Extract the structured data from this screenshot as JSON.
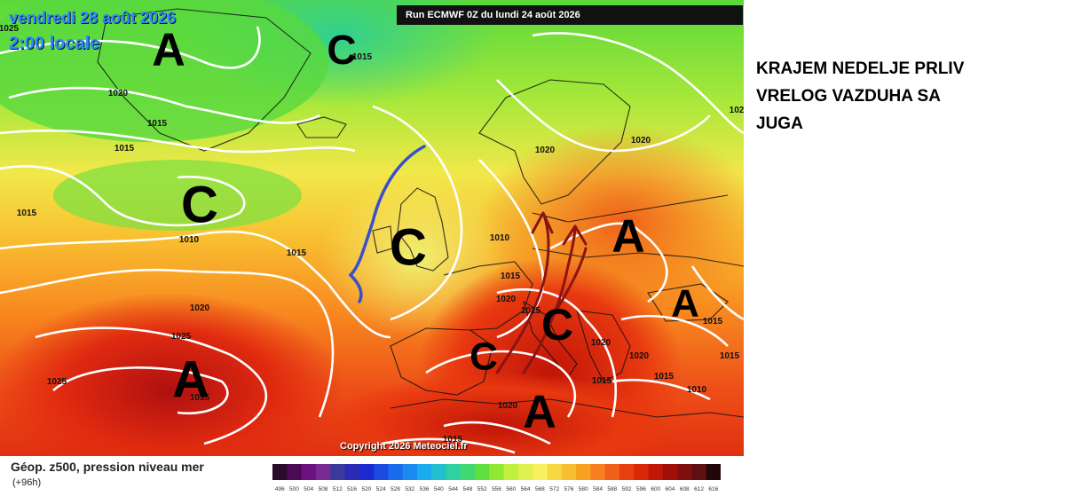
{
  "map": {
    "run_banner": "Run ECMWF 0Z du lundi 24 août 2026",
    "valid_date": "vendredi 28 août 2026",
    "valid_time": "2:00 locale",
    "copyright": "Copyright 2026 Meteociel.fr",
    "pressure_centers": [
      {
        "symbol": "A",
        "kind": "high"
      },
      {
        "symbol": "C",
        "kind": "low"
      },
      {
        "symbol": "C",
        "kind": "low"
      },
      {
        "symbol": "C",
        "kind": "low"
      },
      {
        "symbol": "A",
        "kind": "high"
      },
      {
        "symbol": "A",
        "kind": "high"
      },
      {
        "symbol": "C",
        "kind": "low"
      },
      {
        "symbol": "A",
        "kind": "high"
      },
      {
        "symbol": "C",
        "kind": "low"
      },
      {
        "symbol": "A",
        "kind": "high"
      }
    ],
    "isobar_labels": [
      "1015",
      "1020",
      "1015",
      "1015",
      "1015",
      "1010",
      "1015",
      "1020",
      "1025",
      "1025",
      "1035",
      "1020",
      "1010",
      "1015",
      "1020",
      "1025",
      "1020",
      "1020",
      "1015",
      "1015",
      "1015",
      "1010",
      "1020",
      "1015",
      "1015",
      "1025",
      "1020",
      "102"
    ],
    "annotation_colors": {
      "trough_line": "#3a4fd0",
      "warm_arrows": "#8a1414"
    }
  },
  "headline": {
    "lines": [
      "KRAJEM NEDELJE PRLIV",
      "VRELOG VAZDUHA SA",
      "JUGA"
    ]
  },
  "legend": {
    "title": "Géop. z500, pression niveau mer",
    "subtitle": "(+96h)",
    "values": [
      "496",
      "500",
      "504",
      "508",
      "512",
      "516",
      "520",
      "524",
      "528",
      "532",
      "536",
      "540",
      "544",
      "548",
      "552",
      "556",
      "560",
      "564",
      "568",
      "572",
      "576",
      "580",
      "584",
      "588",
      "592",
      "596",
      "600",
      "604",
      "608",
      "612",
      "616"
    ],
    "colors": [
      "#2a0a2a",
      "#4a0a55",
      "#6a1280",
      "#7a2a90",
      "#3a3a9a",
      "#2a2ab5",
      "#1a2ad0",
      "#1a4ae0",
      "#1a6aee",
      "#1a8af0",
      "#1aaaf0",
      "#20c0d0",
      "#30d0a0",
      "#40d870",
      "#60e040",
      "#90e830",
      "#c0f040",
      "#e0f050",
      "#f8f060",
      "#f8d840",
      "#f8c030",
      "#f8a020",
      "#f88020",
      "#f06018",
      "#e84010",
      "#d82808",
      "#c01808",
      "#a01008",
      "#801010",
      "#601010",
      "#200808"
    ]
  }
}
